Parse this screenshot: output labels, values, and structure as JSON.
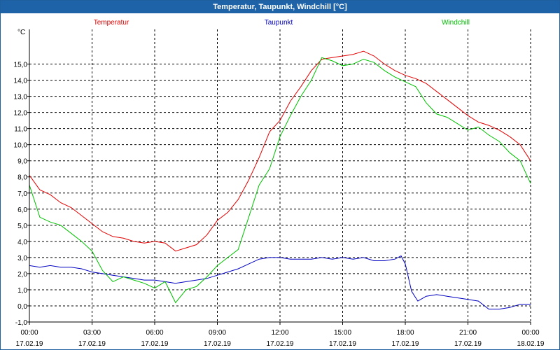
{
  "window": {
    "title": "Temperatur, Taupunkt, Windchill [°C]"
  },
  "chart_data": {
    "type": "line",
    "title": "Temperatur, Taupunkt, Windchill [°C]",
    "ylabel": "°C",
    "xlabel": "",
    "ylim": [
      -1.0,
      16.5
    ],
    "yticks": [
      -1.0,
      0.0,
      1.0,
      2.0,
      3.0,
      4.0,
      5.0,
      6.0,
      7.0,
      8.0,
      9.0,
      10.0,
      11.0,
      12.0,
      13.0,
      14.0,
      15.0
    ],
    "ytick_labels": [
      "-1,0",
      "0,0",
      "1,0",
      "2,0",
      "3,0",
      "4,0",
      "5,0",
      "6,0",
      "7,0",
      "8,0",
      "9,0",
      "10,0",
      "11,0",
      "12,0",
      "13,0",
      "14,0",
      "15,0"
    ],
    "x_unit": "hours since 17.02.19 00:00",
    "xlim": [
      0,
      24
    ],
    "xticks": [
      0,
      3,
      6,
      9,
      12,
      15,
      18,
      21,
      24
    ],
    "xtick_time_labels": [
      "00:00",
      "03:00",
      "06:00",
      "09:00",
      "12:00",
      "15:00",
      "18:00",
      "21:00",
      "00:00"
    ],
    "xtick_date_labels": [
      "17.02.19",
      "17.02.19",
      "17.02.19",
      "17.02.19",
      "17.02.19",
      "17.02.19",
      "17.02.19",
      "17.02.19",
      "18.02.19"
    ],
    "grid": true,
    "legend_placement": "top",
    "series": [
      {
        "name": "Temperatur",
        "color": "#e00000",
        "x": [
          0,
          0.5,
          1,
          1.5,
          2,
          2.5,
          3,
          3.5,
          4,
          4.5,
          5,
          5.5,
          6,
          6.5,
          7,
          7.5,
          8,
          8.5,
          9,
          9.5,
          10,
          10.5,
          11,
          11.5,
          12,
          12.5,
          13,
          13.5,
          14,
          14.5,
          15,
          15.5,
          16,
          16.5,
          17,
          17.5,
          18,
          18.5,
          19,
          19.5,
          20,
          20.5,
          21,
          21.5,
          22,
          22.5,
          23,
          23.5,
          24
        ],
        "y": [
          8.1,
          7.2,
          6.9,
          6.4,
          6.1,
          5.6,
          5.1,
          4.6,
          4.3,
          4.2,
          4.0,
          3.9,
          4.0,
          3.9,
          3.4,
          3.6,
          3.8,
          4.4,
          5.3,
          5.8,
          6.6,
          7.8,
          9.2,
          10.8,
          11.5,
          12.7,
          13.6,
          14.6,
          15.3,
          15.4,
          15.5,
          15.6,
          15.8,
          15.5,
          15.0,
          14.6,
          14.3,
          14.1,
          13.8,
          13.3,
          12.8,
          12.3,
          11.8,
          11.4,
          11.2,
          10.9,
          10.5,
          10.0,
          9.0
        ]
      },
      {
        "name": "Taupunkt",
        "color": "#0000c0",
        "x": [
          0,
          0.5,
          1,
          1.5,
          2,
          2.5,
          3,
          3.5,
          4,
          4.5,
          5,
          5.5,
          6,
          6.5,
          7,
          7.5,
          8,
          8.5,
          9,
          9.5,
          10,
          10.5,
          11,
          11.5,
          12,
          12.5,
          13,
          13.5,
          14,
          14.5,
          15,
          15.5,
          16,
          16.5,
          17,
          17.5,
          17.8,
          18,
          18.3,
          18.6,
          19,
          19.5,
          20,
          20.5,
          21,
          21.5,
          22,
          22.5,
          23,
          23.5,
          24
        ],
        "y": [
          2.5,
          2.4,
          2.5,
          2.4,
          2.4,
          2.3,
          2.1,
          2.0,
          1.9,
          1.8,
          1.7,
          1.6,
          1.6,
          1.5,
          1.4,
          1.5,
          1.6,
          1.7,
          1.9,
          2.1,
          2.3,
          2.6,
          2.9,
          3.0,
          3.0,
          2.9,
          2.9,
          2.9,
          3.0,
          2.9,
          3.0,
          2.9,
          3.0,
          2.8,
          2.8,
          2.9,
          3.1,
          2.6,
          0.9,
          0.3,
          0.6,
          0.7,
          0.6,
          0.5,
          0.4,
          0.3,
          -0.2,
          -0.2,
          -0.1,
          0.1,
          0.1
        ]
      },
      {
        "name": "Windchill",
        "color": "#00c000",
        "x": [
          0,
          0.5,
          1,
          1.5,
          2,
          2.5,
          3,
          3.5,
          4,
          4.5,
          5,
          5.5,
          6,
          6.5,
          7,
          7.5,
          8,
          8.5,
          9,
          9.5,
          10,
          10.5,
          11,
          11.5,
          12,
          12.5,
          13,
          13.5,
          14,
          14.5,
          15,
          15.5,
          16,
          16.5,
          17,
          17.5,
          18,
          18.5,
          19,
          19.5,
          20,
          20.5,
          21,
          21.5,
          22,
          22.5,
          23,
          23.5,
          24
        ],
        "y": [
          7.5,
          5.5,
          5.2,
          5.0,
          4.5,
          4.0,
          3.4,
          2.2,
          1.5,
          1.8,
          1.6,
          1.4,
          1.1,
          1.5,
          0.2,
          1.0,
          1.2,
          1.8,
          2.5,
          3.0,
          3.5,
          5.5,
          7.5,
          8.5,
          10.5,
          11.8,
          13.0,
          14.0,
          15.4,
          15.2,
          14.9,
          15.0,
          15.3,
          15.1,
          14.6,
          14.2,
          13.9,
          13.6,
          12.6,
          11.9,
          11.7,
          11.3,
          10.9,
          11.1,
          10.6,
          10.2,
          9.5,
          9.0,
          7.6
        ]
      }
    ]
  }
}
